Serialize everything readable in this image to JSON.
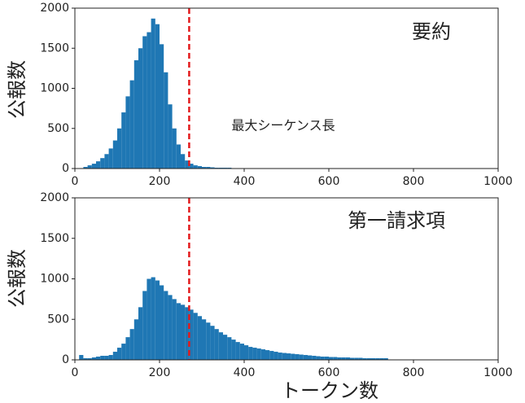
{
  "chart_data": [
    {
      "type": "histogram",
      "title": "要約",
      "ylabel": "公報数",
      "annotation": "最大シーケンス長",
      "color": "#1f77b4",
      "bins": [
        20,
        30,
        40,
        50,
        60,
        70,
        80,
        90,
        100,
        110,
        120,
        130,
        140,
        150,
        160,
        170,
        180,
        190,
        200,
        210,
        220,
        230,
        240,
        250,
        260,
        270,
        280,
        290,
        300,
        310,
        320,
        330,
        340,
        350,
        360,
        370
      ],
      "counts": [
        20,
        40,
        60,
        90,
        130,
        180,
        250,
        350,
        500,
        700,
        900,
        1100,
        1350,
        1500,
        1650,
        1700,
        1870,
        1800,
        1550,
        1200,
        800,
        500,
        300,
        180,
        100,
        60,
        40,
        30,
        20,
        20,
        15,
        10,
        10,
        10,
        10
      ],
      "reference_line": {
        "value": 270,
        "color": "#e31a1c"
      },
      "xlim": [
        0,
        1000
      ],
      "xticks": [
        0,
        200,
        400,
        600,
        800,
        1000
      ],
      "ylim": [
        0,
        2000
      ],
      "yticks": [
        0,
        500,
        1000,
        1500,
        2000
      ]
    },
    {
      "type": "histogram",
      "title": "第一請求項",
      "ylabel": "公報数",
      "xlabel": "トークン数",
      "color": "#1f77b4",
      "bins": [
        10,
        20,
        30,
        40,
        50,
        60,
        70,
        80,
        90,
        100,
        110,
        120,
        130,
        140,
        150,
        160,
        170,
        180,
        190,
        200,
        210,
        220,
        230,
        240,
        250,
        260,
        270,
        280,
        290,
        300,
        310,
        320,
        330,
        340,
        350,
        360,
        370,
        380,
        390,
        400,
        410,
        420,
        430,
        440,
        450,
        460,
        470,
        480,
        490,
        500,
        510,
        520,
        530,
        540,
        550,
        560,
        570,
        580,
        590,
        600,
        610,
        620,
        630,
        640,
        650,
        660,
        670,
        680,
        690,
        700,
        710,
        720,
        730,
        740
      ],
      "counts": [
        60,
        20,
        20,
        30,
        40,
        50,
        50,
        60,
        100,
        150,
        200,
        280,
        380,
        500,
        650,
        850,
        1000,
        1020,
        980,
        920,
        850,
        800,
        750,
        700,
        680,
        650,
        620,
        580,
        540,
        500,
        460,
        420,
        380,
        340,
        310,
        280,
        250,
        220,
        200,
        180,
        160,
        150,
        140,
        130,
        120,
        110,
        100,
        90,
        85,
        80,
        75,
        70,
        65,
        60,
        55,
        50,
        45,
        40,
        40,
        35,
        35,
        30,
        30,
        30,
        25,
        25,
        25,
        20,
        20,
        20,
        20,
        20,
        20
      ],
      "reference_line": {
        "value": 270,
        "color": "#e31a1c"
      },
      "xlim": [
        0,
        1000
      ],
      "xticks": [
        0,
        200,
        400,
        600,
        800,
        1000
      ],
      "ylim": [
        0,
        2000
      ],
      "yticks": [
        0,
        500,
        1000,
        1500,
        2000
      ]
    }
  ]
}
